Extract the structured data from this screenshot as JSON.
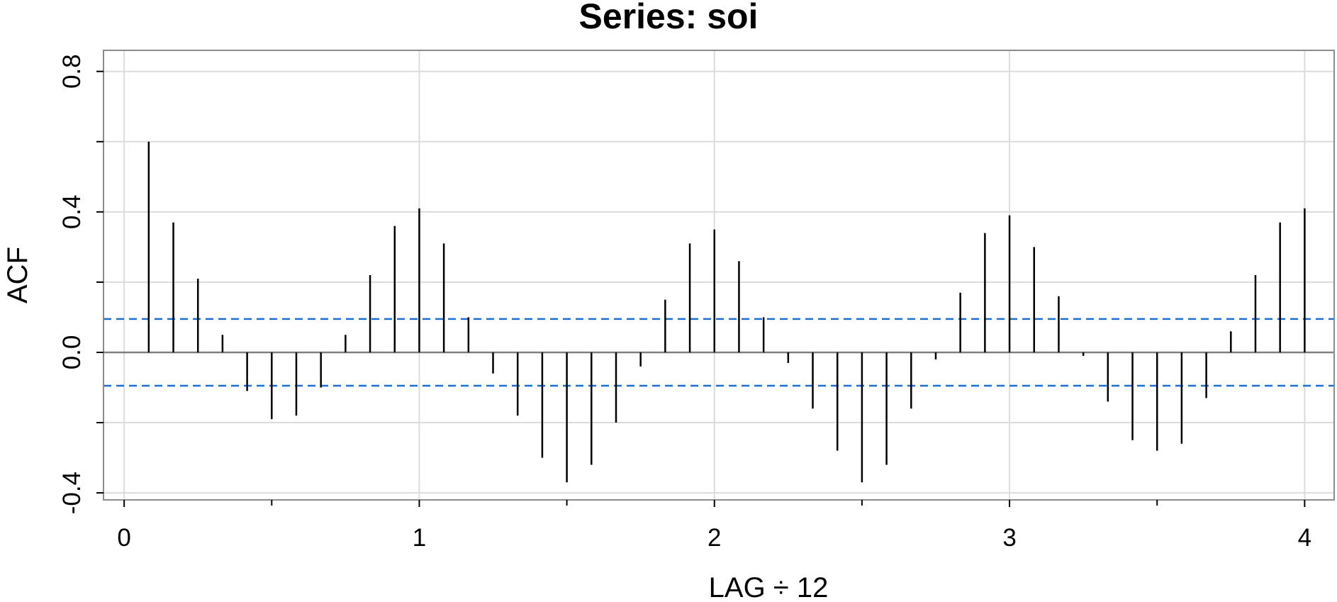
{
  "chart_data": {
    "type": "bar",
    "title": "Series:  soi",
    "xlabel": "LAG ÷ 12",
    "ylabel": "ACF",
    "xlim": [
      -0.07,
      4.1
    ],
    "ylim": [
      -0.42,
      0.86
    ],
    "x_ticks": [
      0,
      1,
      2,
      3,
      4
    ],
    "x_tick_labels": [
      "0",
      "1",
      "2",
      "3",
      "4"
    ],
    "x_minor_ticks": [
      0.5,
      1.5,
      2.5,
      3.5
    ],
    "y_ticks": [
      -0.4,
      -0.2,
      0.0,
      0.2,
      0.4,
      0.6,
      0.8
    ],
    "y_tick_labels": [
      "-0.4",
      "0.0",
      "0.4",
      "0.8"
    ],
    "y_labeled_ticks": [
      -0.4,
      0.0,
      0.4,
      0.8
    ],
    "grid": true,
    "confidence_band": 0.095,
    "colors": {
      "bars": "#000000",
      "confidence": "#1f6fd1",
      "grid": "#dcdcdc",
      "frame": "#8c8c8c"
    },
    "lags": [
      0.0833,
      0.1667,
      0.25,
      0.3333,
      0.4167,
      0.5,
      0.5833,
      0.6667,
      0.75,
      0.8333,
      0.9167,
      1.0,
      1.0833,
      1.1667,
      1.25,
      1.3333,
      1.4167,
      1.5,
      1.5833,
      1.6667,
      1.75,
      1.8333,
      1.9167,
      2.0,
      2.0833,
      2.1667,
      2.25,
      2.3333,
      2.4167,
      2.5,
      2.5833,
      2.6667,
      2.75,
      2.8333,
      2.9167,
      3.0,
      3.0833,
      3.1667,
      3.25,
      3.3333,
      3.4167,
      3.5,
      3.5833,
      3.6667,
      3.75,
      3.8333,
      3.9167,
      4.0
    ],
    "values": [
      0.6,
      0.37,
      0.21,
      0.05,
      -0.11,
      -0.19,
      -0.18,
      -0.1,
      0.05,
      0.22,
      0.36,
      0.41,
      0.31,
      0.1,
      -0.06,
      -0.18,
      -0.3,
      -0.37,
      -0.32,
      -0.2,
      -0.04,
      0.15,
      0.31,
      0.35,
      0.26,
      0.1,
      -0.03,
      -0.16,
      -0.28,
      -0.37,
      -0.32,
      -0.16,
      -0.02,
      0.17,
      0.34,
      0.39,
      0.3,
      0.16,
      -0.01,
      -0.14,
      -0.25,
      -0.28,
      -0.26,
      -0.13,
      0.06,
      0.22,
      0.37,
      0.41
    ]
  }
}
